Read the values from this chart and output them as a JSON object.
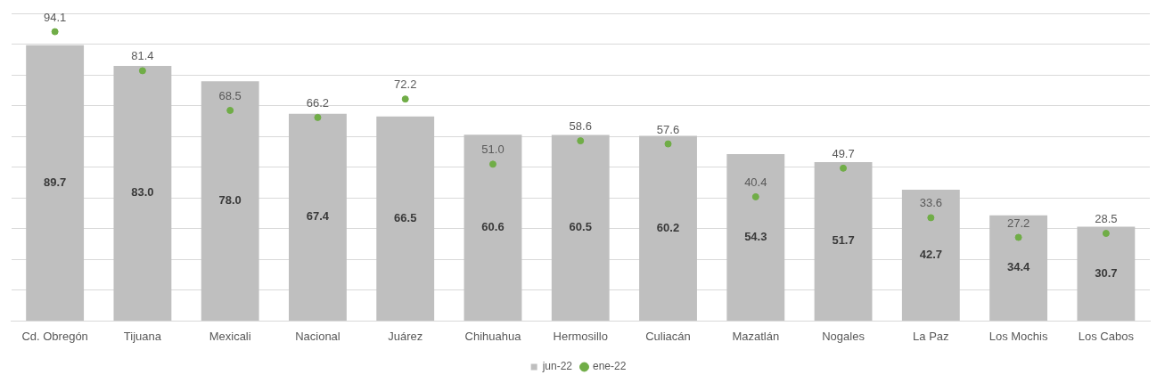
{
  "chart_data": {
    "type": "bar",
    "categories": [
      "Cd. Obregón",
      "Tijuana",
      "Mexicali",
      "Nacional",
      "Juárez",
      "Chihuahua",
      "Hermosillo",
      "Culiacán",
      "Mazatlán",
      "Nogales",
      "La Paz",
      "Los Mochis",
      "Los Cabos"
    ],
    "series": [
      {
        "name": "jun-22",
        "color": "#bfbfbf",
        "values": [
          89.7,
          83.0,
          78.0,
          67.4,
          66.5,
          60.6,
          60.5,
          60.2,
          54.3,
          51.7,
          42.7,
          34.4,
          30.7
        ],
        "value_labels": [
          "89.7",
          "83.0",
          "78.0",
          "67.4",
          "66.5",
          "60.6",
          "60.5",
          "60.2",
          "54.3",
          "51.7",
          "42.7",
          "34.4",
          "30.7"
        ]
      },
      {
        "name": "ene-22",
        "type": "scatter",
        "color": "#70ad47",
        "x": [
          "Cd. Obregón",
          "Tijuana",
          "Mexicali",
          "Nacional",
          "Juárez",
          "Chihuahua",
          "Hermosillo",
          "Culiacán",
          "Mazatlán",
          "Nogales",
          "La Paz",
          "Los Mochis",
          "Los Cabos"
        ],
        "values": [
          94.1,
          81.4,
          68.5,
          66.2,
          72.2,
          51.0,
          58.6,
          57.6,
          40.4,
          49.7,
          33.6,
          27.2,
          28.5
        ],
        "value_labels": [
          "94.1",
          "81.4",
          "68.5",
          "66.2",
          "72.2",
          "51.0",
          "58.6",
          "57.6",
          "40.4",
          "49.7",
          "33.6",
          "27.2",
          "28.5"
        ]
      }
    ],
    "ylim": [
      0,
      100
    ],
    "yticks": [
      {
        "value": 0,
        "label": null
      },
      {
        "value": 10,
        "label": null
      },
      {
        "value": 20,
        "label": null
      },
      {
        "value": 30,
        "label": null
      },
      {
        "value": 40,
        "label": null
      },
      {
        "value": 50,
        "label": null
      },
      {
        "value": 60,
        "label": null
      },
      {
        "value": 70,
        "label": null
      },
      {
        "value": 80,
        "label": null
      },
      {
        "value": 90,
        "label": null
      },
      {
        "value": 100,
        "label": null
      }
    ],
    "grid": "y",
    "legend": "bottom",
    "marker": "circle"
  }
}
